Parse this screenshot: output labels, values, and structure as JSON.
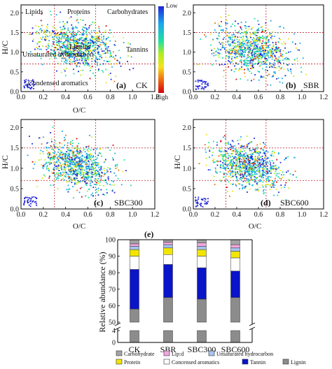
{
  "chart_data": [
    {
      "type": "scatter",
      "panel_label": "(a)",
      "sample": "CK",
      "xlabel": "O/C",
      "ylabel": "H/C",
      "xlim": [
        0.0,
        1.2
      ],
      "ylim": [
        0.0,
        2.2
      ],
      "xticks": [
        "0.0",
        "0.2",
        "0.4",
        "0.6",
        "0.8",
        "1.0",
        "1.2"
      ],
      "yticks": [
        "0.0",
        "0.5",
        "1.0",
        "1.5",
        "2.0"
      ],
      "region_labels": [
        "Lipids",
        "Proteins",
        "Carbohydrates",
        "Unsaturated hydrocarbon",
        "Lignins",
        "Tannins",
        "Condensed aromatics"
      ],
      "cluster": {
        "cx": 0.5,
        "cy": 1.15,
        "sx": 0.17,
        "sy": 0.3,
        "tilt": -0.45
      },
      "reference_lines": {
        "x": [
          0.3,
          0.67
        ],
        "y": [
          1.5,
          0.7
        ]
      },
      "colorbar": {
        "top_label": "Low",
        "bottom_label": "High"
      }
    },
    {
      "type": "scatter",
      "panel_label": "(b)",
      "sample": "SBR",
      "xlabel": "O/C",
      "ylabel": "H/C",
      "xlim": [
        0.0,
        1.2
      ],
      "ylim": [
        0.0,
        2.2
      ],
      "xticks": [
        "0.0",
        "0.2",
        "0.4",
        "0.6",
        "0.8",
        "1.0",
        "1.2"
      ],
      "yticks": [
        "0.0",
        "0.5",
        "1.0",
        "1.5",
        "2.0"
      ],
      "cluster": {
        "cx": 0.55,
        "cy": 1.05,
        "sx": 0.17,
        "sy": 0.3,
        "tilt": -0.4
      },
      "reference_lines": {
        "x": [
          0.3,
          0.67
        ],
        "y": [
          1.5,
          0.7
        ]
      }
    },
    {
      "type": "scatter",
      "panel_label": "(c)",
      "sample": "SBC300",
      "xlabel": "O/C",
      "ylabel": "H/C",
      "xlim": [
        0.0,
        1.2
      ],
      "ylim": [
        0.0,
        2.2
      ],
      "xticks": [
        "0.0",
        "0.2",
        "0.4",
        "0.6",
        "0.8",
        "1.0",
        "1.2"
      ],
      "yticks": [
        "0.0",
        "0.5",
        "1.0",
        "1.5",
        "2.0"
      ],
      "cluster": {
        "cx": 0.5,
        "cy": 1.05,
        "sx": 0.16,
        "sy": 0.28,
        "tilt": -0.45
      },
      "reference_lines": {
        "x": [
          0.3,
          0.67
        ],
        "y": [
          1.5,
          0.7
        ]
      }
    },
    {
      "type": "scatter",
      "panel_label": "(d)",
      "sample": "SBC600",
      "xlabel": "O/C",
      "ylabel": "H/C",
      "xlim": [
        0.0,
        1.2
      ],
      "ylim": [
        0.0,
        2.2
      ],
      "xticks": [
        "0.0",
        "0.2",
        "0.4",
        "0.6",
        "0.8",
        "1.0",
        "1.2"
      ],
      "yticks": [
        "0.0",
        "0.5",
        "1.0",
        "1.5",
        "2.0"
      ],
      "cluster": {
        "cx": 0.5,
        "cy": 1.05,
        "sx": 0.16,
        "sy": 0.28,
        "tilt": -0.45
      },
      "reference_lines": {
        "x": [
          0.3,
          0.67
        ],
        "y": [
          1.5,
          0.7
        ]
      }
    },
    {
      "type": "bar",
      "stacked": true,
      "panel_label": "(e)",
      "ylabel": "Relative abundance (%)",
      "categories": [
        "CK",
        "SBR",
        "SBC300",
        "SBC600"
      ],
      "yticks": [
        "0",
        "4",
        "50",
        "60",
        "70",
        "80",
        "90",
        "100"
      ],
      "axis_break": true,
      "series": [
        {
          "name": "Lignin",
          "color": "#8c8c8c",
          "values": [
            58,
            65,
            64,
            65
          ]
        },
        {
          "name": "Tannin",
          "color": "#0a14c8",
          "values": [
            24,
            20,
            19,
            16
          ]
        },
        {
          "name": "Concensed aromatics",
          "color": "#ffffff",
          "values": [
            8,
            6,
            7,
            8
          ]
        },
        {
          "name": "Protein",
          "color": "#f2e600",
          "values": [
            4,
            4,
            4,
            4
          ]
        },
        {
          "name": "Unsaturated hydrocarbon",
          "color": "#a6c4ef",
          "values": [
            2,
            2,
            2,
            2
          ]
        },
        {
          "name": "Lip:d",
          "color": "#f0a6e0",
          "values": [
            1.5,
            1.5,
            2,
            2
          ]
        },
        {
          "name": "Carbohydrate",
          "color": "#a3a3a3",
          "values": [
            2.5,
            1.5,
            2,
            3
          ]
        }
      ],
      "legend_order": [
        "Carbohydrate",
        "Lip:d",
        "Unsaturated hydrocarbon",
        "Protein",
        "Concensed aromatics",
        "Tannin",
        "Lignin"
      ]
    }
  ]
}
